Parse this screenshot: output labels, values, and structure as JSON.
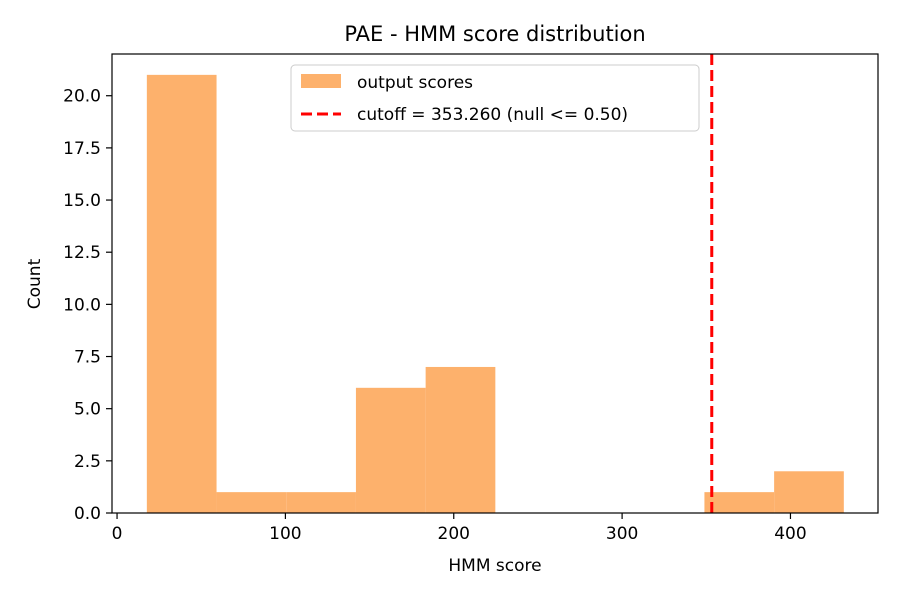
{
  "chart_data": {
    "type": "bar",
    "title": "PAE - HMM score distribution",
    "xlabel": "HMM score",
    "ylabel": "Count",
    "xlim": [
      -3,
      452
    ],
    "ylim": [
      0,
      22
    ],
    "x_ticks": [
      0,
      100,
      200,
      300,
      400
    ],
    "y_ticks": [
      0.0,
      2.5,
      5.0,
      7.5,
      10.0,
      12.5,
      15.0,
      17.5,
      20.0
    ],
    "bins": [
      {
        "start": 17.7,
        "end": 59.1,
        "count": 21
      },
      {
        "start": 59.1,
        "end": 100.5,
        "count": 1
      },
      {
        "start": 100.5,
        "end": 141.9,
        "count": 1
      },
      {
        "start": 141.9,
        "end": 183.3,
        "count": 6
      },
      {
        "start": 183.3,
        "end": 224.7,
        "count": 7
      },
      {
        "start": 224.7,
        "end": 266.1,
        "count": 0
      },
      {
        "start": 266.1,
        "end": 307.5,
        "count": 0
      },
      {
        "start": 307.5,
        "end": 348.9,
        "count": 0
      },
      {
        "start": 348.9,
        "end": 390.3,
        "count": 1
      },
      {
        "start": 390.3,
        "end": 431.7,
        "count": 2
      }
    ],
    "cutoff": 353.26,
    "colors": {
      "bars": "#fdb16c",
      "cutoff": "#ff0000"
    },
    "legend": {
      "placement": "top-center",
      "entries": [
        "output scores",
        "cutoff = 353.260 (null <= 0.50)"
      ]
    }
  }
}
